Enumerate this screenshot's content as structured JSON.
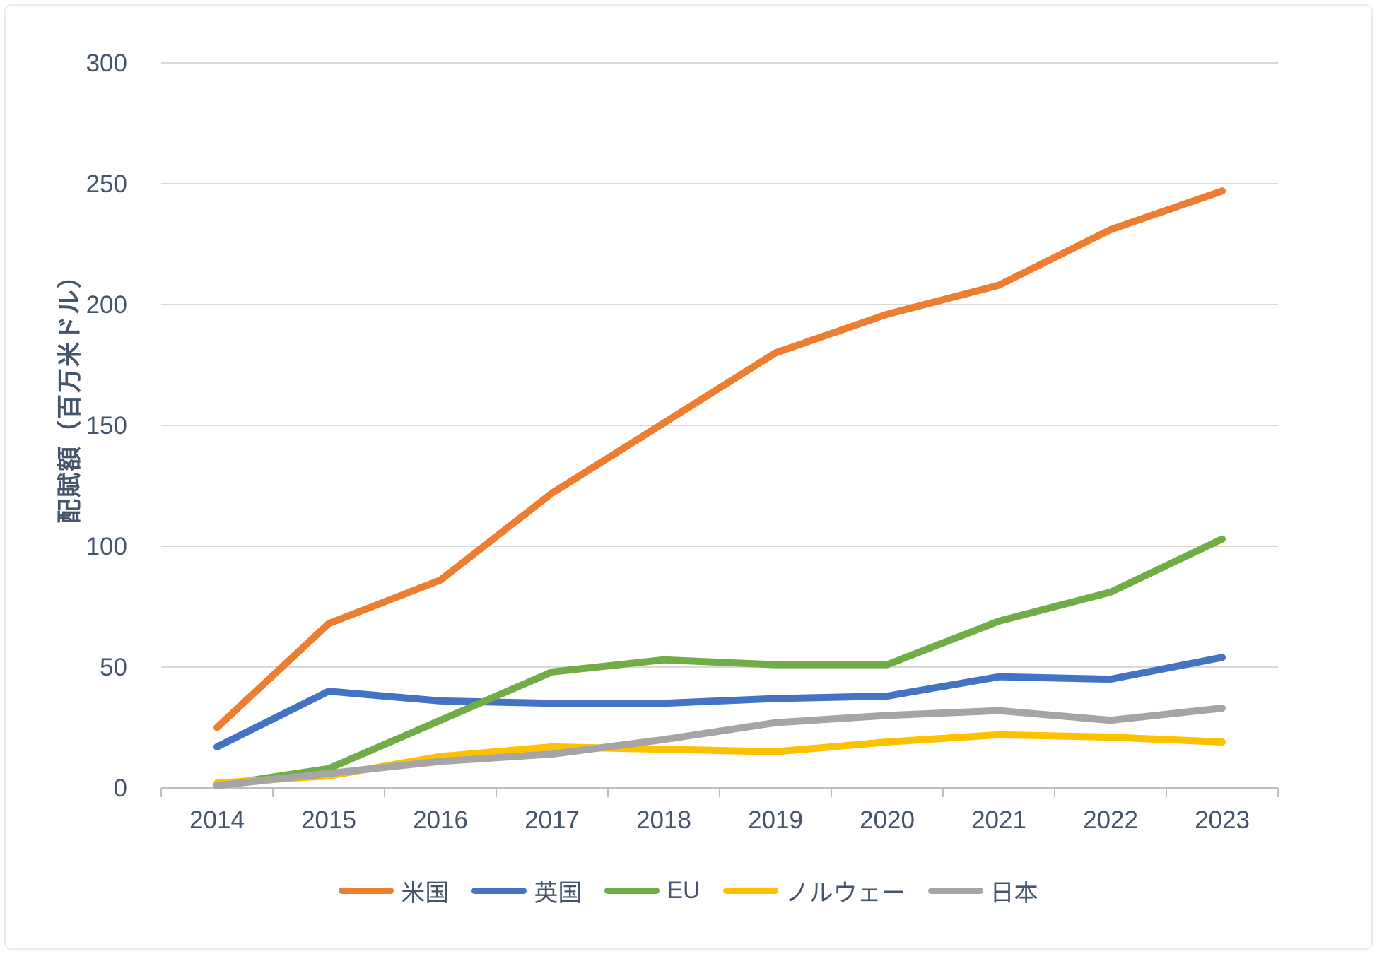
{
  "chart_data": {
    "type": "line",
    "title": "",
    "xlabel": "",
    "ylabel": "配賦額（百万米ドル）",
    "ylim": [
      0,
      300
    ],
    "yticks": [
      0,
      50,
      100,
      150,
      200,
      250,
      300
    ],
    "grid": true,
    "legend_position": "bottom",
    "categories": [
      "2014",
      "2015",
      "2016",
      "2017",
      "2018",
      "2019",
      "2020",
      "2021",
      "2022",
      "2023"
    ],
    "series": [
      {
        "name": "米国",
        "color": "#ED7D31",
        "values": [
          25,
          68,
          86,
          122,
          151,
          180,
          196,
          208,
          231,
          247
        ]
      },
      {
        "name": "英国",
        "color": "#4472C4",
        "values": [
          17,
          40,
          36,
          35,
          35,
          37,
          38,
          46,
          45,
          54
        ]
      },
      {
        "name": "EU",
        "color": "#70AD47",
        "values": [
          1,
          8,
          28,
          48,
          53,
          51,
          51,
          69,
          81,
          103
        ]
      },
      {
        "name": "ノルウェー",
        "color": "#FFC000",
        "values": [
          2,
          5,
          13,
          17,
          16,
          15,
          19,
          22,
          21,
          19
        ]
      },
      {
        "name": "日本",
        "color": "#A5A5A5",
        "values": [
          1,
          6,
          11,
          14,
          20,
          27,
          30,
          32,
          28,
          33
        ]
      }
    ],
    "colors": {
      "text": "#44546A",
      "gridline": "#D9D9D9",
      "axis": "#BFBFBF",
      "background": "#FFFFFF"
    }
  }
}
